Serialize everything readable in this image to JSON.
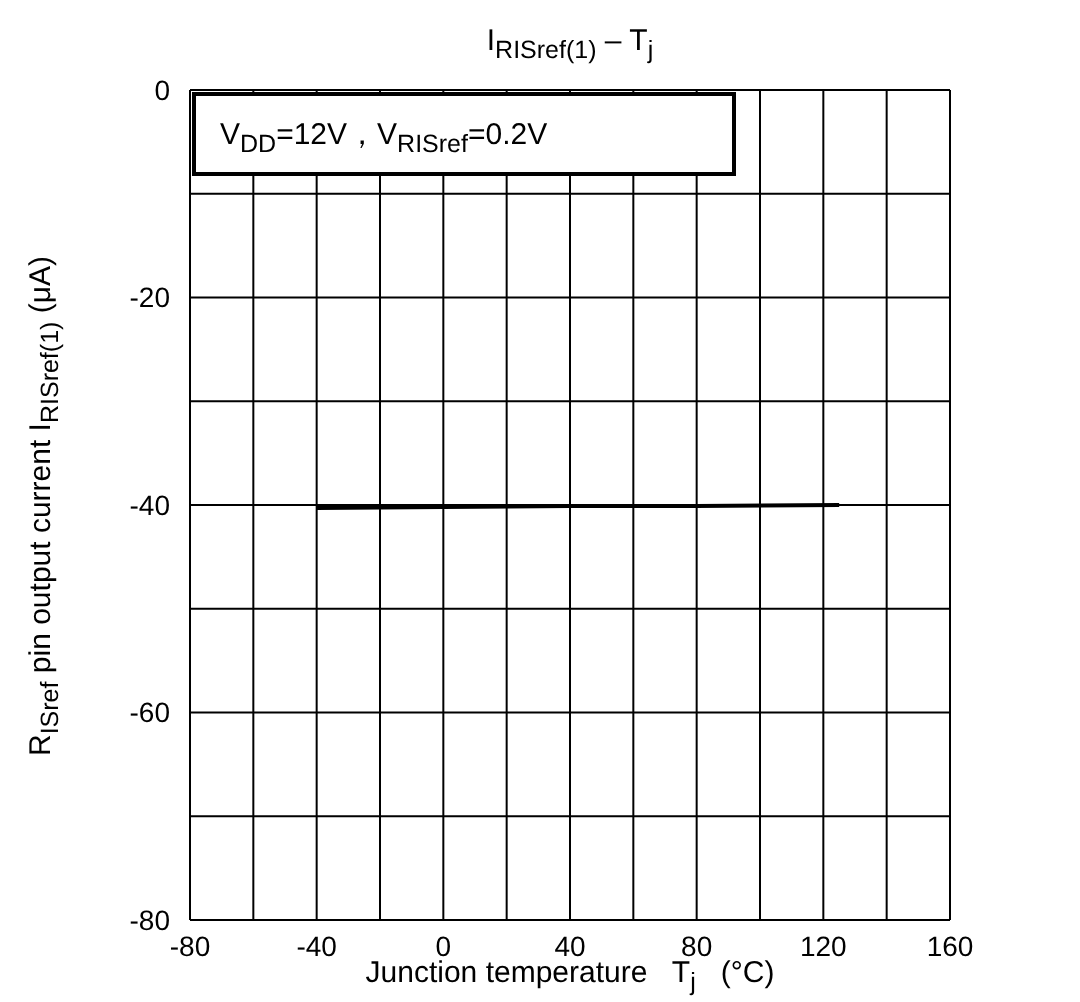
{
  "chart_data": {
    "type": "line",
    "title": "I$_{RISref(1)}$ – T$_{j}$",
    "xlabel": "Junction temperature   T$_{j}$   (°C)",
    "ylabel": "R$_{ISref}$ pin output current I$_{RISref(1)}$ (μA)",
    "annotations": [
      "V$_{DD}$=12V，V$_{RISref}$=0.2V"
    ],
    "x": [
      -40,
      0,
      40,
      80,
      125
    ],
    "series": [
      {
        "color": "#000000",
        "values": [
          -40.3,
          -40.2,
          -40.1,
          -40.1,
          -40.0
        ]
      }
    ],
    "xlim": [
      -80,
      160
    ],
    "xticks": [
      -80,
      {
        "value": -60,
        "label": null
      },
      -40,
      {
        "value": -20,
        "label": null
      },
      0,
      {
        "value": 20,
        "label": null
      },
      40,
      {
        "value": 60,
        "label": null
      },
      80,
      {
        "value": 100,
        "label": null
      },
      120,
      {
        "value": 140,
        "label": null
      },
      160
    ],
    "ylim": [
      -80,
      0
    ],
    "yticks": [
      -80,
      {
        "value": -70,
        "label": null
      },
      -60,
      {
        "value": -50,
        "label": null
      },
      -40,
      {
        "value": -30,
        "label": null
      },
      -20,
      {
        "value": -10,
        "label": null
      },
      0
    ],
    "grid": true,
    "marker": "none",
    "line_style": "solid",
    "legend": false
  }
}
